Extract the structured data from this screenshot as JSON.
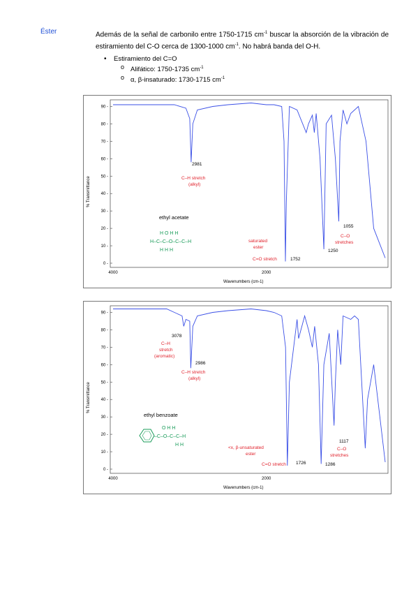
{
  "section_label": "Éster",
  "intro": {
    "part1": "Además de la señal de carbonilo entre 1750-1715 cm",
    "sup1": "-1",
    "part2": " buscar la absorción de la vibración de estiramiento del C-O cerca de 1300-1000 cm",
    "sup2": "-1",
    "part3": ". No habrá banda del O-H."
  },
  "bullet": {
    "title": "Estiramiento del C=O",
    "items": [
      {
        "text": "Alifático: 1750-1735 cm",
        "sup": "-1"
      },
      {
        "text": "α, β-insaturado: 1730-1715 cm",
        "sup": "-1"
      }
    ]
  },
  "spectra": [
    {
      "compound": "ethyl acetate",
      "y_label": "% Transmittance",
      "x_label": "Wavenumbers (cm-1)",
      "y_ticks": [
        "90",
        "80",
        "70",
        "60",
        "50",
        "40",
        "30",
        "20",
        "10",
        "0"
      ],
      "x_ticks": [
        "4000",
        "2000"
      ],
      "peak_labels": [
        "2981",
        "1752",
        "1250",
        "1055"
      ],
      "annotations": {
        "ch": [
          "C–H stretch",
          "(alkyl)"
        ],
        "co_ester": [
          "saturated",
          "ester"
        ],
        "co_stretch": "C=O stretch",
        "c_o": [
          "C–O",
          "stretches"
        ]
      },
      "structure": {
        "top": "H O H H",
        "main": "H–C–C–O–C–C–H",
        "bottom": "H H H"
      },
      "chart_data": {
        "type": "line",
        "xlabel": "Wavenumbers (cm-1)",
        "ylabel": "% Transmittance",
        "xlim": [
          4000,
          450
        ],
        "ylim": [
          0,
          90
        ],
        "x": [
          4000,
          3700,
          3200,
          3050,
          3000,
          2981,
          2960,
          2900,
          2700,
          2500,
          2200,
          2000,
          1900,
          1800,
          1770,
          1752,
          1740,
          1700,
          1600,
          1480,
          1450,
          1400,
          1375,
          1350,
          1300,
          1250,
          1220,
          1150,
          1100,
          1055,
          1040,
          1000,
          950,
          900,
          850,
          800,
          700,
          600,
          450
        ],
        "y": [
          91,
          91,
          91,
          89,
          83,
          58,
          80,
          88,
          90,
          91,
          92,
          91,
          91,
          90,
          70,
          1,
          35,
          90,
          88,
          75,
          80,
          85,
          75,
          86,
          60,
          8,
          80,
          85,
          60,
          24,
          70,
          88,
          80,
          86,
          88,
          90,
          70,
          20,
          3
        ]
      }
    },
    {
      "compound": "ethyl benzoate",
      "y_label": "% Transmittance",
      "x_label": "Wavenumbers (cm-1)",
      "y_ticks": [
        "90",
        "80",
        "70",
        "60",
        "50",
        "40",
        "30",
        "20",
        "10",
        "0"
      ],
      "x_ticks": [
        "4000",
        "2000"
      ],
      "peak_labels": [
        "3078",
        "2986",
        "1726",
        "1286",
        "1117"
      ],
      "annotations": {
        "ch_arom": [
          "C–H",
          "stretch",
          "(aromatic)"
        ],
        "ch": [
          "C–H stretch",
          "(alkyl)"
        ],
        "co_ester": [
          "<x, β-unsaturated",
          "ester"
        ],
        "co_stretch": "C=O stretch",
        "c_o": [
          "C–O",
          "stretches"
        ]
      },
      "structure": {
        "top": "O H H",
        "main": "–C–O–C–C–H",
        "bottom": "H H"
      },
      "chart_data": {
        "type": "line",
        "xlabel": "Wavenumbers (cm-1)",
        "ylabel": "% Transmittance",
        "xlim": [
          4000,
          450
        ],
        "ylim": [
          0,
          90
        ],
        "x": [
          4000,
          3700,
          3300,
          3100,
          3078,
          3050,
          3000,
          2986,
          2960,
          2900,
          2700,
          2500,
          2200,
          2000,
          1900,
          1800,
          1750,
          1726,
          1700,
          1600,
          1580,
          1500,
          1450,
          1400,
          1370,
          1320,
          1286,
          1250,
          1180,
          1117,
          1100,
          1070,
          1030,
          1000,
          900,
          850,
          800,
          710,
          680,
          600,
          450
        ],
        "y": [
          92,
          92,
          92,
          88,
          82,
          86,
          85,
          58,
          82,
          88,
          90,
          91,
          92,
          91,
          90,
          88,
          70,
          2,
          50,
          86,
          75,
          88,
          80,
          70,
          82,
          60,
          3,
          60,
          78,
          25,
          50,
          80,
          60,
          88,
          86,
          88,
          86,
          12,
          40,
          60,
          4
        ]
      }
    }
  ]
}
